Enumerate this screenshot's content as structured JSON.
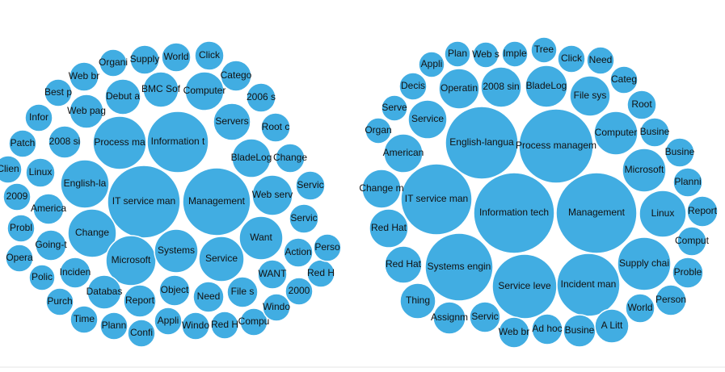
{
  "chart_data": [
    {
      "type": "packed-bubble",
      "color": "#41ade2",
      "categories": [
        "Information t",
        "IT service man",
        "Management",
        "Process ma",
        "English-la",
        "Change",
        "Microsoft",
        "Systems",
        "Service",
        "Want",
        "Web serv",
        "BladeLog",
        "Servers",
        "Computer",
        "BMC Sof",
        "Debut a",
        "Web pag",
        "2008 si",
        "Linux",
        "America",
        "Going-t",
        "Inciden",
        "Databas",
        "Report",
        "Object",
        "Need",
        "File s",
        "WANT",
        "Action",
        "Servic",
        "Servic",
        "Change",
        "Root c",
        "2006 s",
        "Catego",
        "Click",
        "World",
        "Supply",
        "Organi",
        "Web br",
        "Best p",
        "Infor",
        "Patch",
        "Clien",
        "2009",
        "Probl",
        "Opera",
        "Polic",
        "Purch",
        "Time",
        "Plann",
        "Confi",
        "Appli",
        "Windo",
        "Red H",
        "Compu",
        "Windo",
        "2000",
        "Red H",
        "Perso"
      ],
      "values": [
        38,
        45,
        42,
        33,
        30,
        30,
        31,
        27,
        28,
        27,
        25,
        24,
        23,
        24,
        22,
        22,
        21,
        20,
        18,
        19,
        19,
        19,
        21,
        20,
        19,
        19,
        19,
        18,
        18,
        18,
        18,
        18,
        18,
        18,
        19,
        18,
        18,
        18,
        17,
        18,
        17,
        17,
        17,
        17,
        17,
        17,
        17,
        16,
        17,
        17,
        17,
        17,
        17,
        17,
        17,
        17,
        17,
        17,
        17,
        17
      ]
    },
    {
      "type": "packed-bubble",
      "color": "#41ade2",
      "categories": [
        "Information tech",
        "Management",
        "IT service man",
        "English-langua",
        "Process managem",
        "Systems engin",
        "Service leve",
        "Incident man",
        "Supply chai",
        "Linux",
        "Microsoft",
        "Computer",
        "File sys",
        "BladeLog",
        "2008 sin",
        "Operatin",
        "Service",
        "American",
        "Change m",
        "Red Hat",
        "Red Hat",
        "Thing",
        "Assignm",
        "Servic",
        "Web br",
        "Ad hoc",
        "Busine",
        "A Litt",
        "World",
        "Person",
        "Proble",
        "Comput",
        "Report",
        "Planni",
        "Busine",
        "Busine",
        "Root",
        "Categ",
        "Need",
        "Click",
        "Tree",
        "Imple",
        "Web s",
        "Plan",
        "Appli",
        "Decis",
        "Serve",
        "Organ"
      ],
      "values": [
        50,
        50,
        44,
        45,
        46,
        42,
        40,
        39,
        33,
        29,
        27,
        27,
        25,
        26,
        25,
        25,
        24,
        24,
        24,
        24,
        23,
        22,
        20,
        19,
        19,
        19,
        20,
        21,
        18,
        19,
        19,
        18,
        19,
        18,
        18,
        18,
        18,
        17,
        17,
        17,
        16,
        16,
        16,
        16,
        16,
        17,
        16,
        16
      ]
    }
  ]
}
